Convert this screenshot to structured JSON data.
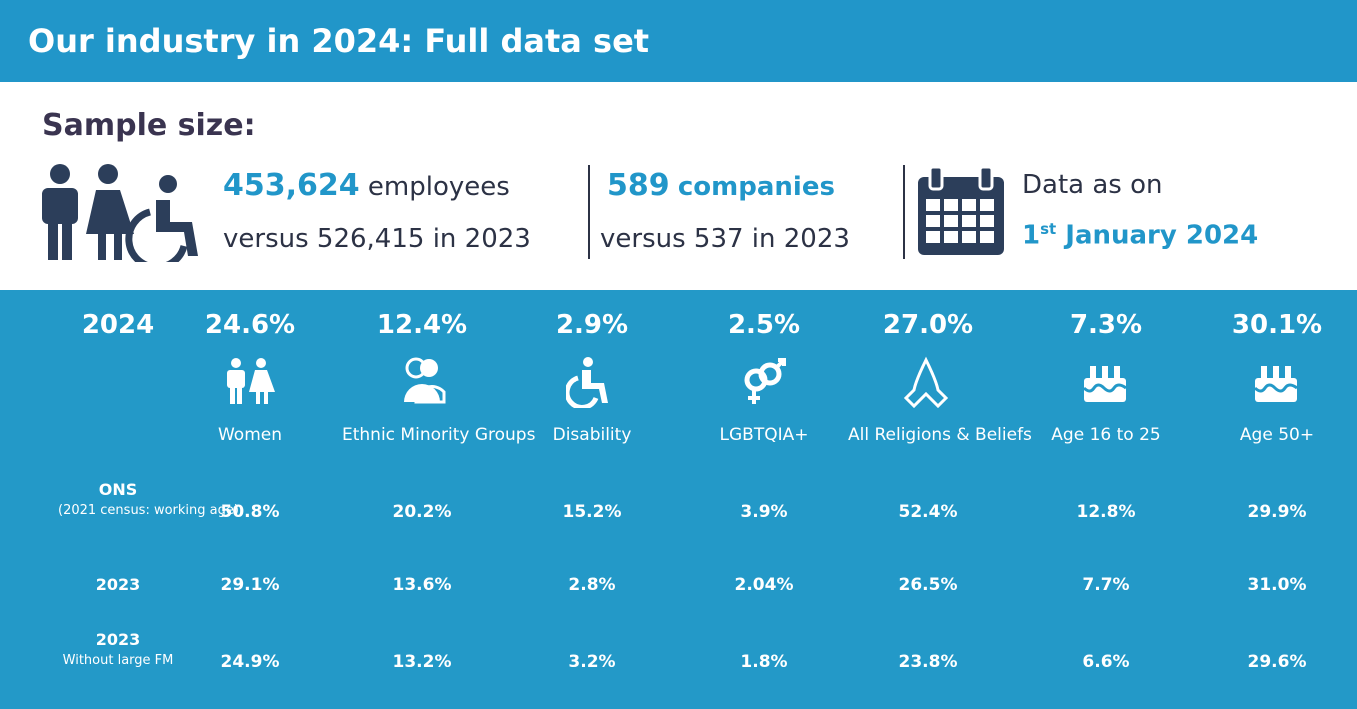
{
  "header": {
    "title": "Our industry in 2024: Full data set"
  },
  "sample": {
    "heading": "Sample size:",
    "employees": {
      "value": "453,624",
      "unit": "employees",
      "compare": "versus 526,415 in 2023"
    },
    "companies": {
      "value": "589",
      "unit": "companies",
      "compare": "versus 537 in 2023"
    },
    "date": {
      "label": "Data as on",
      "day": "1",
      "suffix": "st",
      "rest": "January 2024"
    }
  },
  "table": {
    "year": "2024",
    "columns": [
      {
        "pct": "24.6%",
        "label": "Women"
      },
      {
        "pct": "12.4%",
        "label": "Ethnic Minority Groups"
      },
      {
        "pct": "2.9%",
        "label": "Disability"
      },
      {
        "pct": "2.5%",
        "label": "LGBTQIA+"
      },
      {
        "pct": "27.0%",
        "label": "All Religions & Beliefs"
      },
      {
        "pct": "7.3%",
        "label": "Age 16 to 25"
      },
      {
        "pct": "30.1%",
        "label": "Age 50+"
      }
    ],
    "rows": [
      {
        "label": "ONS",
        "sublabel": "(2021 census: working age)",
        "values": [
          "50.8%",
          "20.2%",
          "15.2%",
          "3.9%",
          "52.4%",
          "12.8%",
          "29.9%"
        ]
      },
      {
        "label": "2023",
        "values": [
          "29.1%",
          "13.6%",
          "2.8%",
          "2.04%",
          "26.5%",
          "7.7%",
          "31.0%"
        ]
      },
      {
        "label": "2023",
        "sublabel": "Without large FM",
        "values": [
          "24.9%",
          "13.2%",
          "3.2%",
          "1.8%",
          "23.8%",
          "6.6%",
          "29.6%"
        ]
      }
    ]
  }
}
